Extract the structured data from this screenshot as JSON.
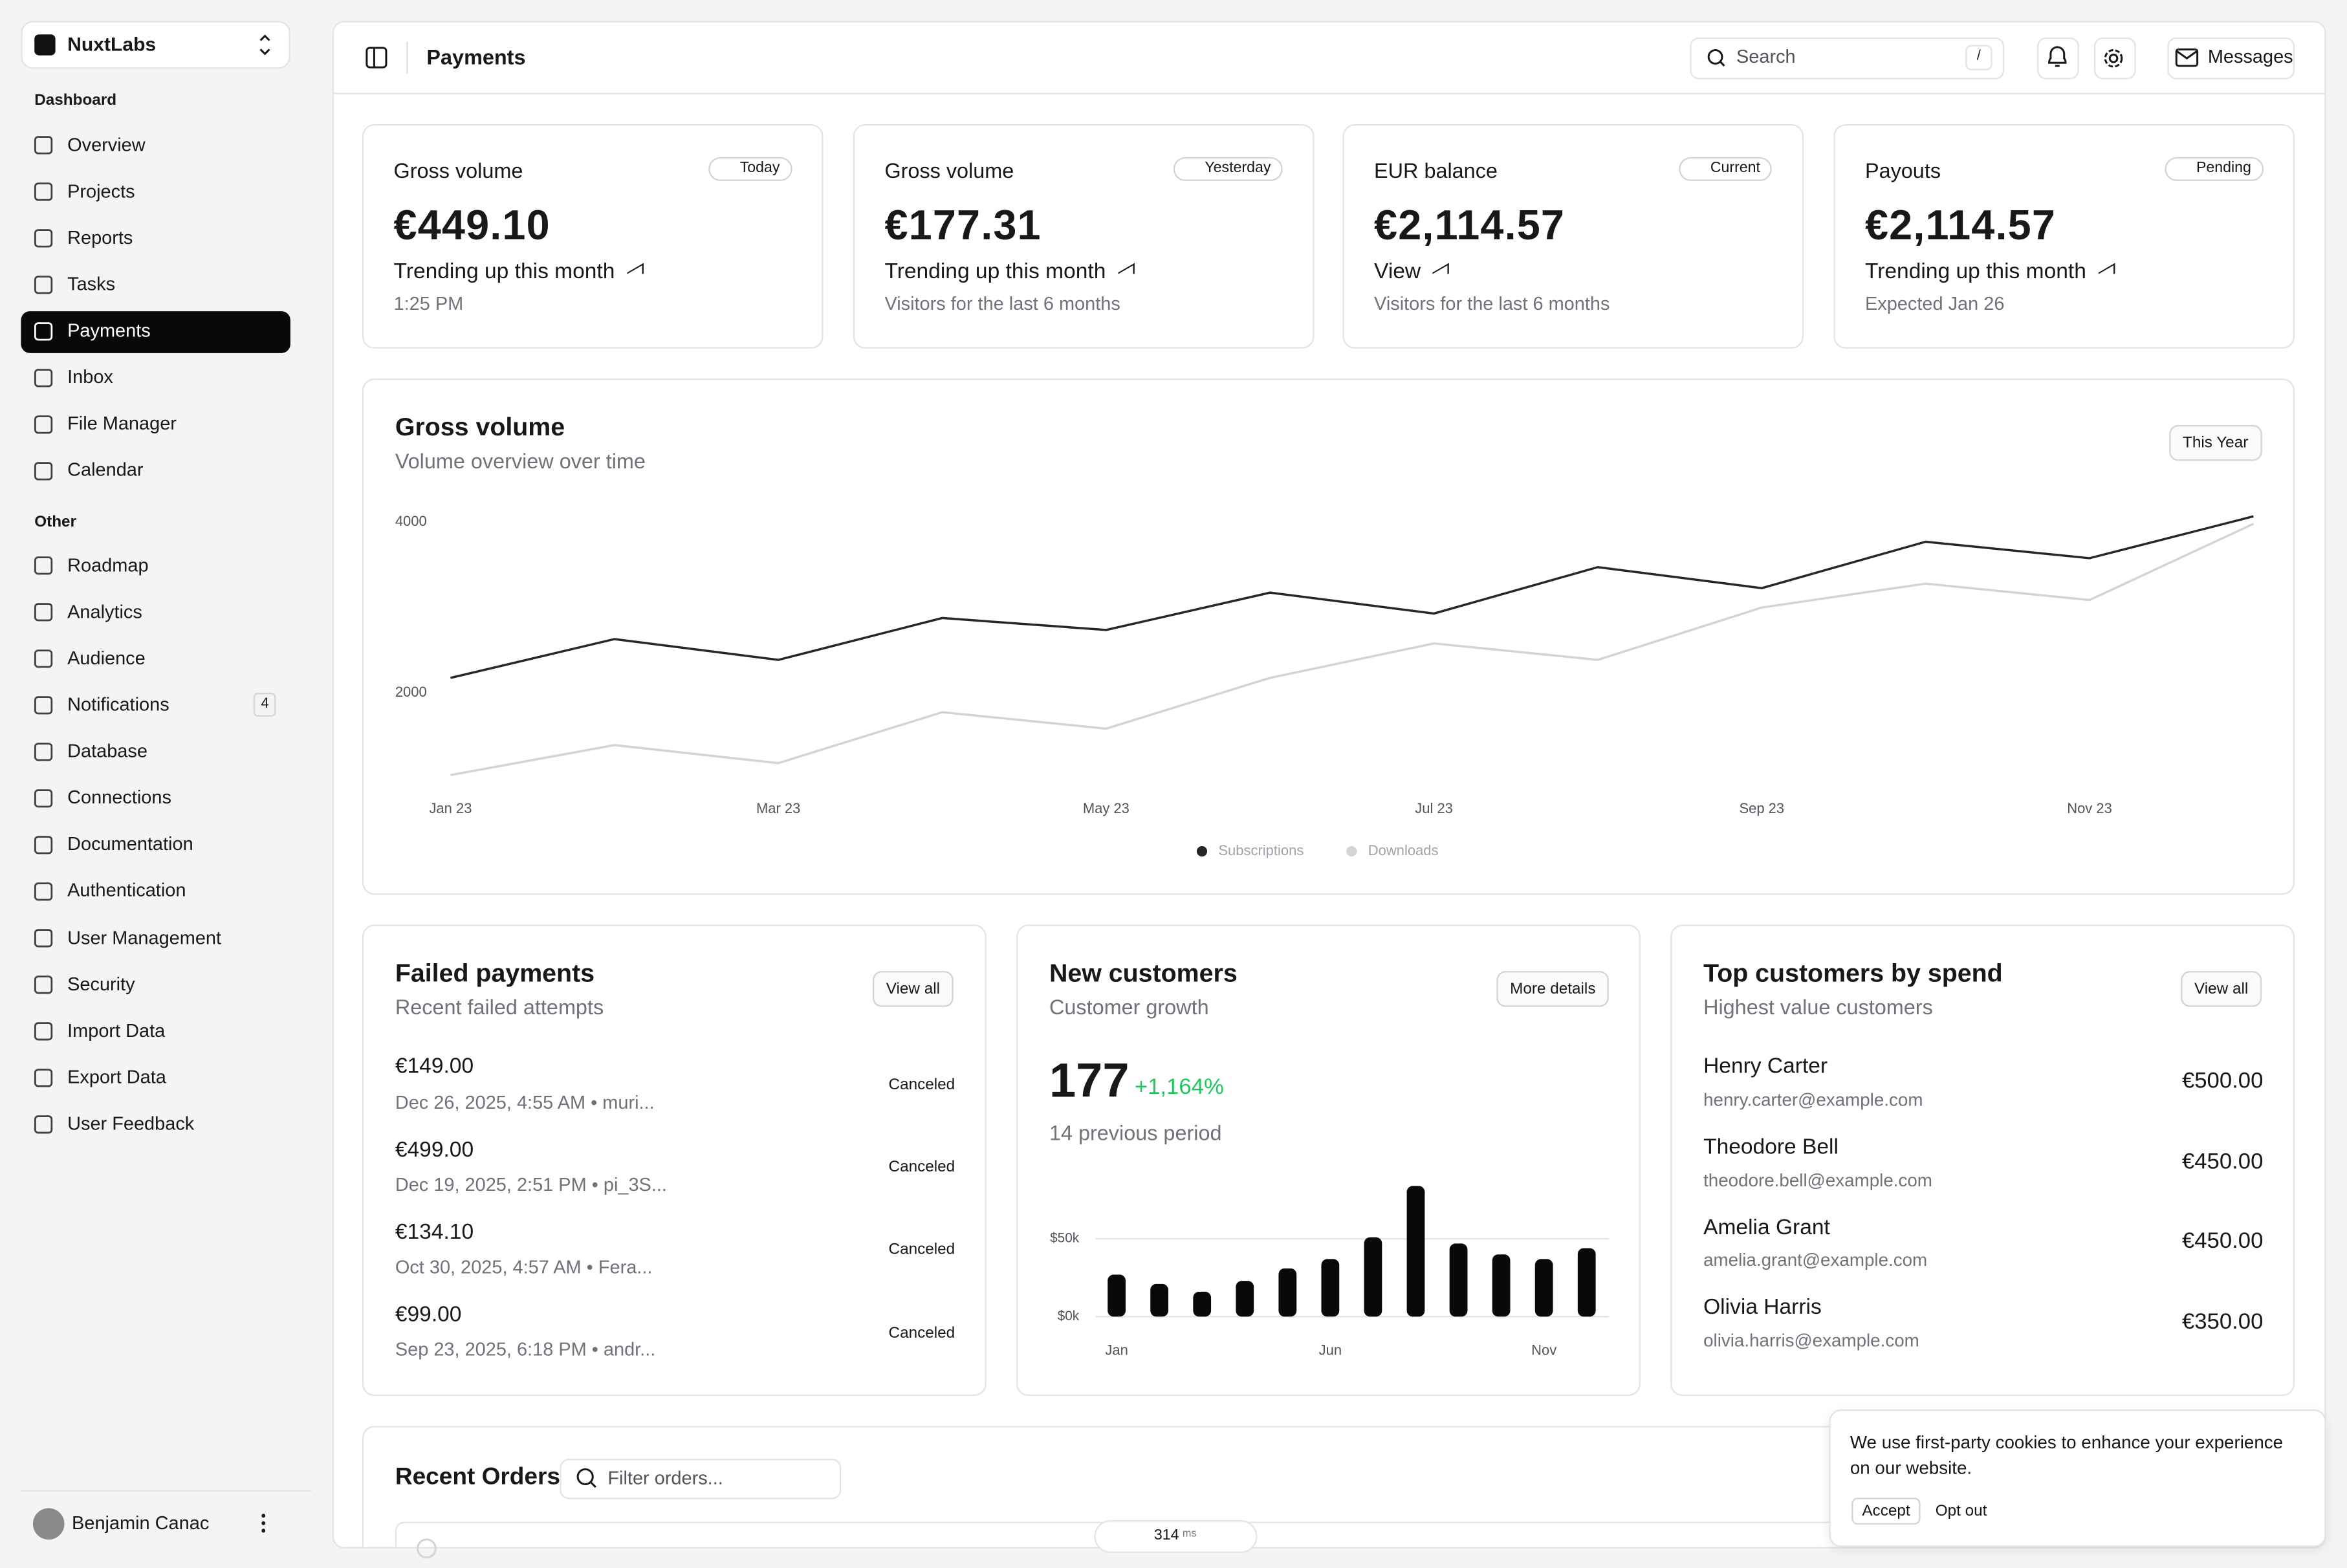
{
  "sidebar": {
    "team": "NuxtLabs",
    "sections": [
      {
        "label": "Dashboard",
        "items": [
          "Overview",
          "Projects",
          "Reports",
          "Tasks",
          "Payments",
          "Inbox",
          "File Manager",
          "Calendar"
        ]
      },
      {
        "label": "Other",
        "items": [
          "Roadmap",
          "Analytics",
          "Audience",
          "Notifications",
          "Database",
          "Connections",
          "Documentation",
          "Authentication",
          "User Management",
          "Security",
          "Import Data",
          "Export Data",
          "User Feedback"
        ]
      }
    ],
    "active": {
      "section": 0,
      "item": 4
    },
    "badge": {
      "section": 1,
      "item": 3,
      "value": 4
    },
    "user": "Benjamin Canac"
  },
  "header": {
    "title": "Payments",
    "search": "Search",
    "shortcut": "/",
    "messages": "Messages"
  },
  "stats": [
    {
      "label": "Gross volume",
      "badge": "Today",
      "value": "€449.10",
      "trend": "Trending up this month",
      "sub": "1:25 PM"
    },
    {
      "label": "Gross volume",
      "badge": "Yesterday",
      "value": "€177.31",
      "trend": "Trending up this month",
      "sub": "Visitors for the last 6 months"
    },
    {
      "label": "EUR balance",
      "badge": "Current",
      "value": "€2,114.57",
      "trend": "View",
      "sub": "Visitors for the last 6 months"
    },
    {
      "label": "Payouts",
      "badge": "Pending",
      "value": "€2,114.57",
      "trend": "Trending up this month",
      "sub": "Expected Jan 26"
    }
  ],
  "chart_data": [
    {
      "type": "line",
      "title": "Gross volume",
      "subtitle": "Volume overview over time",
      "range_button": "This Year",
      "categories": [
        "Jan 23",
        null,
        "Mar 23",
        null,
        "May 23",
        null,
        "Jul 23",
        null,
        "Sep 23",
        null,
        "Nov 23",
        null
      ],
      "series": [
        {
          "name": "Subscriptions",
          "color": "#27272a",
          "values": [
            2175,
            2630,
            2386,
            2877,
            2737,
            3175,
            2930,
            3474,
            3228,
            3772,
            3579,
            4070
          ]
        },
        {
          "name": "Downloads",
          "color": "#d4d4d8",
          "values": [
            1035,
            1386,
            1175,
            1772,
            1579,
            2175,
            2579,
            2386,
            3000,
            3281,
            3088,
            3982
          ]
        }
      ],
      "ylim": [
        900,
        4200
      ],
      "yticks": [
        2000,
        4000
      ],
      "grid": false,
      "legend": "bottom"
    },
    {
      "type": "bar",
      "title": "New customers",
      "subtitle": "Customer growth",
      "button": "More details",
      "count": 177,
      "change": "+1,164%",
      "previous": "14 previous period",
      "categories": [
        "Jan",
        null,
        null,
        null,
        null,
        "Jun",
        null,
        null,
        null,
        null,
        "Nov",
        null
      ],
      "values": [
        27000,
        21000,
        16000,
        23000,
        31000,
        37000,
        51000,
        84000,
        47000,
        40000,
        37000,
        44000
      ],
      "color": "#09090b",
      "ylim": [
        0,
        90000
      ],
      "yticks": [
        {
          "value": 0,
          "label": "$0k"
        },
        {
          "value": 50000,
          "label": "$50k"
        }
      ],
      "grid": true
    }
  ],
  "failed_payments": {
    "title": "Failed payments",
    "subtitle": "Recent failed attempts",
    "button": "View all",
    "rows": [
      {
        "amount": "€149.00",
        "detail": "Dec 26, 2025, 4:55 AM • muri...",
        "status": "Canceled"
      },
      {
        "amount": "€499.00",
        "detail": "Dec 19, 2025, 2:51 PM • pi_3S...",
        "status": "Canceled"
      },
      {
        "amount": "€134.10",
        "detail": "Oct 30, 2025, 4:57 AM • Fera...",
        "status": "Canceled"
      },
      {
        "amount": "€99.00",
        "detail": "Sep 23, 2025, 6:18 PM • andr...",
        "status": "Canceled"
      }
    ]
  },
  "top_customers": {
    "title": "Top customers by spend",
    "subtitle": "Highest value customers",
    "button": "View all",
    "rows": [
      {
        "name": "Henry Carter",
        "email": "henry.carter@example.com",
        "amount": "€500.00"
      },
      {
        "name": "Theodore Bell",
        "email": "theodore.bell@example.com",
        "amount": "€450.00"
      },
      {
        "name": "Amelia Grant",
        "email": "amelia.grant@example.com",
        "amount": "€450.00"
      },
      {
        "name": "Olivia Harris",
        "email": "olivia.harris@example.com",
        "amount": "€350.00"
      }
    ]
  },
  "recent_orders": {
    "title": "Recent Orders",
    "filter": "Filter orders..."
  },
  "cookie": {
    "text": "We use first-party cookies to enhance your experience on our website.",
    "accept": "Accept",
    "opt_out": "Opt out"
  },
  "devtools": {
    "value": 314,
    "unit": "ms"
  }
}
